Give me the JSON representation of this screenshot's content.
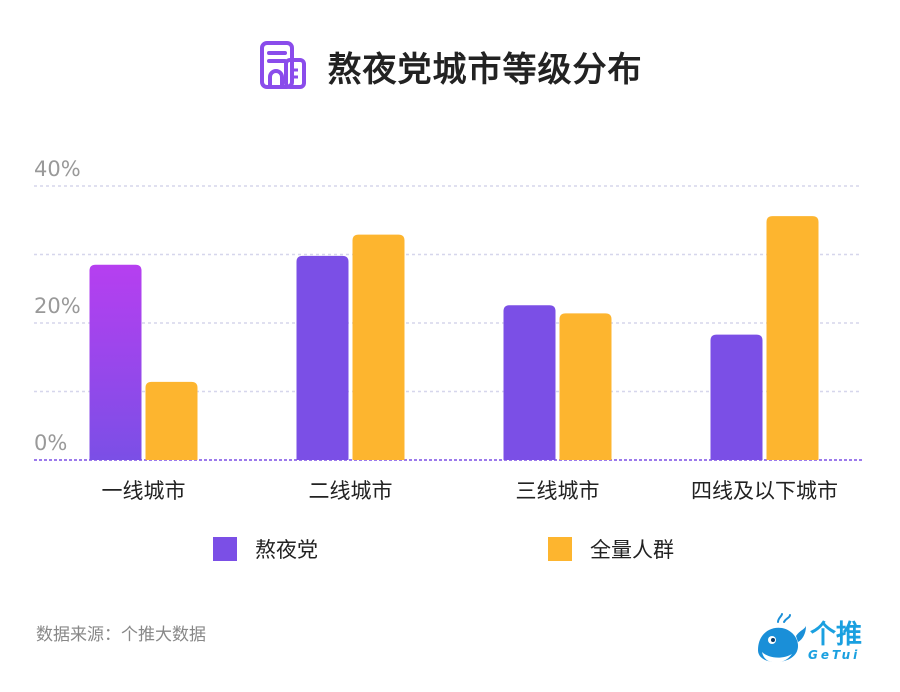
{
  "title": "熬夜党城市等级分布",
  "source": "数据来源：个推大数据",
  "logo": {
    "text": "个推",
    "sub": "GeTui"
  },
  "colors": {
    "series1": "#7B4FE6",
    "series1_top": "#B63FF0",
    "series2": "#FDB52F",
    "grid": "#D6D6EC",
    "baseline": "#7B4FE6"
  },
  "chart_data": {
    "type": "bar",
    "categories": [
      "一线城市",
      "二线城市",
      "三线城市",
      "四线及以下城市"
    ],
    "series": [
      {
        "name": "熬夜党",
        "values": [
          28.5,
          29.8,
          22.6,
          18.3
        ]
      },
      {
        "name": "全量人群",
        "values": [
          11.4,
          32.9,
          21.4,
          35.6
        ]
      }
    ],
    "ylim": [
      0,
      40
    ],
    "yticks": [
      0,
      20,
      40
    ],
    "ytick_labels": [
      "0%",
      "20%",
      "40%"
    ],
    "grid_values": [
      10,
      20,
      30,
      40
    ],
    "grid": true,
    "legend_position": "bottom"
  }
}
